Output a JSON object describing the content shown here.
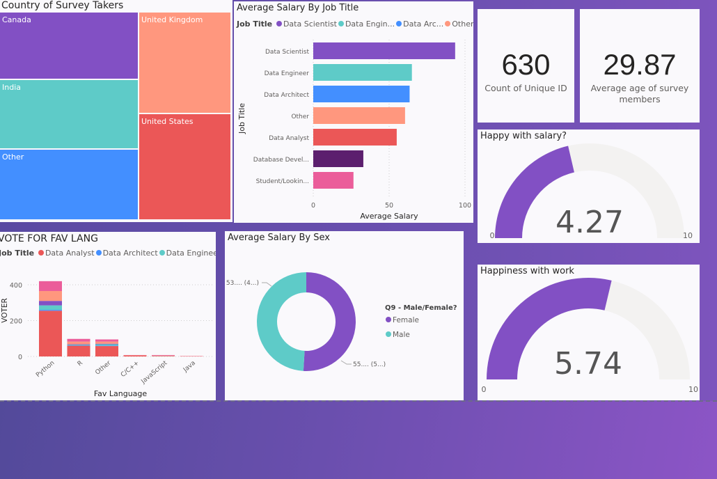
{
  "colors": {
    "purple": "#8250c4",
    "teal": "#5ecbc8",
    "blue": "#438fff",
    "orange": "#ff977e",
    "red": "#eb5757",
    "darkpurple": "#5c1f6e",
    "pink": "#eb5d9a",
    "track": "#f3f2f1"
  },
  "treemap": {
    "title": "Country of Survey Takers",
    "cells": [
      {
        "label": "Canada",
        "color": "#8250c4"
      },
      {
        "label": "India",
        "color": "#5ecbc8"
      },
      {
        "label": "Other",
        "color": "#438fff"
      },
      {
        "label": "United Kingdom",
        "color": "#ff977e"
      },
      {
        "label": "United States",
        "color": "#eb5757"
      }
    ]
  },
  "salary_by_job": {
    "title": "Average Salary By Job Title",
    "legend_title": "Job Title",
    "legend": [
      {
        "label": "Data Scientist",
        "color": "#8250c4"
      },
      {
        "label": "Data Engin...",
        "color": "#5ecbc8"
      },
      {
        "label": "Data Arc...",
        "color": "#438fff"
      },
      {
        "label": "Other",
        "color": "#ff977e"
      }
    ]
  },
  "kpis": [
    {
      "value": "630",
      "label": "Count of Unique ID"
    },
    {
      "value": "29.87",
      "label": "Average age of survey members"
    }
  ],
  "gauges": [
    {
      "title": "Happy with salary?",
      "value": 4.27,
      "display": "4.27",
      "min": "0",
      "max": "10"
    },
    {
      "title": "Happiness with work",
      "value": 5.74,
      "display": "5.74",
      "min": "0",
      "max": "10"
    }
  ],
  "fav_lang": {
    "title": "VOTE FOR FAV LANG",
    "legend_title": "Job Title",
    "legend": [
      {
        "label": "Data Analyst",
        "color": "#eb5757"
      },
      {
        "label": "Data Architect",
        "color": "#438fff"
      },
      {
        "label": "Data Engineer",
        "color": "#5ecbc8"
      }
    ]
  },
  "salary_by_sex": {
    "title": "Average Salary By Sex",
    "legend_title": "Q9 - Male/Female?",
    "legend": [
      {
        "label": "Female",
        "color": "#8250c4"
      },
      {
        "label": "Male",
        "color": "#5ecbc8"
      }
    ]
  },
  "chart_data": [
    {
      "type": "bar",
      "orientation": "horizontal",
      "title": "Average Salary By Job Title",
      "xlabel": "Average Salary",
      "ylabel": "Job Title",
      "categories": [
        "Data Scientist",
        "Data Engineer",
        "Data Architect",
        "Other",
        "Data Analyst",
        "Database Devel...",
        "Student/Lookin..."
      ],
      "values": [
        93.5,
        65,
        63.5,
        60.5,
        55,
        33,
        26.5
      ],
      "colors": [
        "#8250c4",
        "#5ecbc8",
        "#438fff",
        "#ff977e",
        "#eb5757",
        "#5c1f6e",
        "#eb5d9a"
      ],
      "xlim": [
        0,
        100
      ],
      "xticks": [
        "0",
        "50",
        "100"
      ],
      "grid": true
    },
    {
      "type": "bar",
      "stacked": true,
      "title": "VOTE FOR FAV LANG",
      "xlabel": "Fav Language",
      "ylabel": "VOTER",
      "categories": [
        "Python",
        "R",
        "Other",
        "C/C++",
        "JavaScript",
        "Java"
      ],
      "series": [
        {
          "name": "Data Analyst",
          "color": "#eb5757",
          "values": [
            255,
            60,
            58,
            6,
            2,
            1
          ]
        },
        {
          "name": "Data Architect",
          "color": "#438fff",
          "values": [
            5,
            3,
            3,
            0,
            0,
            0
          ]
        },
        {
          "name": "Data Engineer",
          "color": "#5ecbc8",
          "values": [
            25,
            3,
            7,
            0,
            1,
            0
          ]
        },
        {
          "color": "#8250c4",
          "values": [
            25,
            2,
            3,
            0,
            0,
            0
          ]
        },
        {
          "color": "#ff977e",
          "values": [
            55,
            15,
            12,
            1,
            2,
            1
          ]
        },
        {
          "color": "#eb5d9a",
          "values": [
            55,
            15,
            12,
            1,
            3,
            1
          ]
        }
      ],
      "ylim": [
        0,
        440
      ],
      "yticks": [
        "0",
        "200",
        "400"
      ],
      "grid": true
    },
    {
      "type": "pie",
      "donut": true,
      "title": "Average Salary By Sex",
      "slices": [
        {
          "label": "Female",
          "value": 55,
          "data_label": "55.... (5...)",
          "color": "#8250c4"
        },
        {
          "label": "Male",
          "value": 53,
          "data_label": "53.... (4...)",
          "color": "#5ecbc8"
        }
      ],
      "legend_placement": "right"
    },
    {
      "type": "treemap",
      "title": "Country of Survey Takers",
      "categories": [
        "Canada",
        "India",
        "Other",
        "United Kingdom",
        "United States"
      ]
    }
  ]
}
